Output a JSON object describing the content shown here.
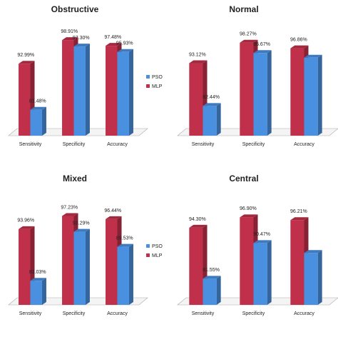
{
  "chart_data": [
    {
      "type": "bar",
      "title": "Obstructive",
      "categories": [
        "Sensitivity",
        "Specificity",
        "Accuracy"
      ],
      "ylim": [
        75,
        100
      ],
      "legend": "right",
      "series": [
        {
          "name": "MLP",
          "color": "#c0304a",
          "values": [
            92.99,
            98.91,
            97.48
          ],
          "value_labels": [
            "92.99%",
            "98.91%",
            "97.48%"
          ]
        },
        {
          "name": "PSO",
          "color": "#4a90e0",
          "values": [
            81.48,
            97.3,
            95.93
          ],
          "value_labels": [
            "81.48%",
            "97.30%",
            "95.93%"
          ]
        }
      ]
    },
    {
      "type": "bar",
      "title": "Normal",
      "categories": [
        "Sensitivity",
        "Specificity",
        "Accuracy"
      ],
      "ylim": [
        75,
        100
      ],
      "series": [
        {
          "name": "MLP",
          "color": "#c0304a",
          "values": [
            93.12,
            98.27,
            96.86
          ],
          "value_labels": [
            "93.12%",
            "98.27%",
            "96.86%"
          ]
        },
        {
          "name": "PSO",
          "color": "#4a90e0",
          "values": [
            82.44,
            95.67,
            94.5
          ],
          "value_labels": [
            "82.44%",
            "95.67%",
            null
          ]
        }
      ]
    },
    {
      "type": "bar",
      "title": "Mixed",
      "categories": [
        "Sensitivity",
        "Specificity",
        "Accuracy"
      ],
      "ylim": [
        75,
        100
      ],
      "legend": "right",
      "series": [
        {
          "name": "MLP",
          "color": "#c0304a",
          "values": [
            93.96,
            97.23,
            96.44
          ],
          "value_labels": [
            "93.96%",
            "97.23%",
            "96.44%"
          ]
        },
        {
          "name": "PSO",
          "color": "#4a90e0",
          "values": [
            81.03,
            93.29,
            89.53
          ],
          "value_labels": [
            "81.03%",
            "93.29%",
            "89.53%"
          ]
        }
      ]
    },
    {
      "type": "bar",
      "title": "Central",
      "categories": [
        "Sensitivity",
        "Specificity",
        "Accuracy"
      ],
      "ylim": [
        75,
        100
      ],
      "series": [
        {
          "name": "MLP",
          "color": "#c0304a",
          "values": [
            94.3,
            96.9,
            96.21
          ],
          "value_labels": [
            "94.30%",
            "96.90%",
            "96.21%"
          ]
        },
        {
          "name": "PSO",
          "color": "#4a90e0",
          "values": [
            81.55,
            90.47,
            88.0
          ],
          "value_labels": [
            "81.55%",
            "90.47%",
            null
          ]
        }
      ]
    }
  ]
}
